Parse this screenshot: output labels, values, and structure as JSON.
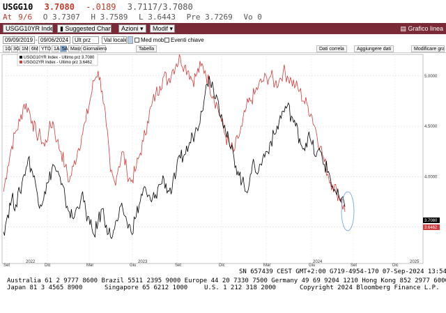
{
  "quote": {
    "ticker": "USGG10",
    "last": "3.7080",
    "change": "-.0189",
    "bid_ask": "3.7117/3.7080",
    "at_label": "At",
    "at_date": "9/6",
    "open": "O 3.7307",
    "high": "H 3.7589",
    "low": "L 3.6443",
    "prev": "Pre 3.7269",
    "volume": "Vo 0"
  },
  "toolbar": {
    "security": "USGG10YR Index",
    "suggested": "Suggested Charts",
    "actions": "Azioni",
    "modify": "Modif",
    "chart_type": "Grafico linea"
  },
  "settings": {
    "start_date": "09/09/2019",
    "end_date": "09/06/2024",
    "field": "Ult prz",
    "currency": "Val locale",
    "moving_avg": "Med mob.",
    "key_events": "Eventi chiave",
    "table": "Tabella",
    "data_correlation": "Dati correla",
    "add_data": "Aggiungere dati",
    "modify_chart": "Modificare gra"
  },
  "periods": {
    "items": [
      "1G",
      "3G",
      "1M",
      "6M",
      "YTD",
      "1A",
      "5A",
      "Mass",
      "Giornaliero"
    ],
    "active": "5A"
  },
  "chart_data": {
    "type": "line",
    "series": [
      {
        "name": "USGG10YR Index - Ultimo prz  3.7080",
        "color": "#000000",
        "last": "3.7080",
        "values": [
          3.45,
          3.62,
          3.78,
          3.72,
          3.85,
          4.02,
          4.18,
          4.05,
          3.88,
          3.72,
          3.85,
          3.95,
          4.12,
          4.05,
          3.92,
          3.78,
          3.65,
          3.58,
          3.7,
          3.82,
          3.66,
          3.52,
          3.42,
          3.55,
          3.68,
          3.52,
          3.4,
          3.48,
          3.6,
          3.68,
          3.55,
          3.45,
          3.58,
          3.72,
          3.88,
          3.8,
          3.75,
          3.82,
          3.92,
          3.98,
          3.86,
          3.88,
          4.05,
          4.18,
          4.22,
          4.3,
          4.4,
          4.48,
          4.65,
          4.82,
          5.0,
          4.88,
          4.78,
          4.62,
          4.45,
          4.3,
          4.2,
          4.05,
          3.95,
          3.85,
          4.02,
          4.12,
          4.05,
          4.18,
          4.25,
          4.35,
          4.42,
          4.55,
          4.65,
          4.7,
          4.6,
          4.5,
          4.38,
          4.28,
          4.4,
          4.32,
          4.2,
          4.25,
          4.12,
          4.05,
          3.9,
          3.82,
          3.75,
          3.7
        ]
      },
      {
        "name": "USGG2YR Index - Ultimo prz  3.6462",
        "color": "#d03b3b",
        "last": "3.6462",
        "values": [
          3.85,
          4.1,
          4.3,
          4.45,
          4.55,
          4.72,
          4.68,
          4.55,
          4.42,
          4.4,
          4.3,
          4.45,
          4.55,
          4.35,
          4.25,
          4.1,
          3.95,
          4.1,
          4.25,
          4.4,
          4.55,
          4.75,
          4.95,
          5.05,
          4.85,
          4.5,
          4.05,
          3.95,
          4.1,
          4.25,
          4.05,
          3.95,
          4.05,
          4.2,
          4.35,
          4.55,
          4.7,
          4.82,
          4.9,
          5.0,
          4.95,
          5.05,
          5.12,
          5.18,
          5.1,
          5.05,
          4.95,
          5.02,
          5.1,
          5.05,
          4.92,
          4.8,
          4.7,
          4.55,
          4.4,
          4.3,
          4.25,
          4.38,
          4.5,
          4.68,
          4.75,
          4.82,
          4.9,
          4.95,
          4.98,
          5.0,
          4.92,
          4.95,
          5.05,
          5.0,
          4.95,
          4.9,
          4.85,
          4.75,
          4.7,
          4.6,
          4.45,
          4.3,
          4.15,
          4.0,
          3.92,
          3.85,
          3.78,
          3.65
        ]
      }
    ],
    "y_ticks": [
      "5.0000",
      "4.5000",
      "4.0000",
      "3.5000"
    ],
    "ylim": [
      3.15,
      5.2
    ],
    "x_ticks_months": [
      "Set",
      "Dic",
      "Mar",
      "Giu",
      "Set",
      "Dic",
      "Mar",
      "Giu",
      "Set",
      "Dic",
      "Mar",
      "Giu",
      "Set"
    ],
    "x_ticks_years": [
      "2022",
      "2023",
      "2024",
      "2025"
    ],
    "grid": true,
    "legend_placement": "top-left",
    "annotation": "ellipse around latest values"
  },
  "footer": {
    "sn": "SN 657439 CEST GMT+2:00 G719-4954-170 07-Sep-2024 13:54:",
    "line1": "Australia 61 2 9777 8600 Brazil 5511 2395 9000 Europe 44 20 7330 7500 Germany 49 69 9204 1210 Hong Kong 852 2977 6000",
    "line2a": "Japan 81 3 4565 8900",
    "line2b": "Singapore 65 6212 1000",
    "line2c": "U.S. 1 212 318 2000",
    "line2d": "Copyright 2024 Bloomberg Finance L.P."
  }
}
